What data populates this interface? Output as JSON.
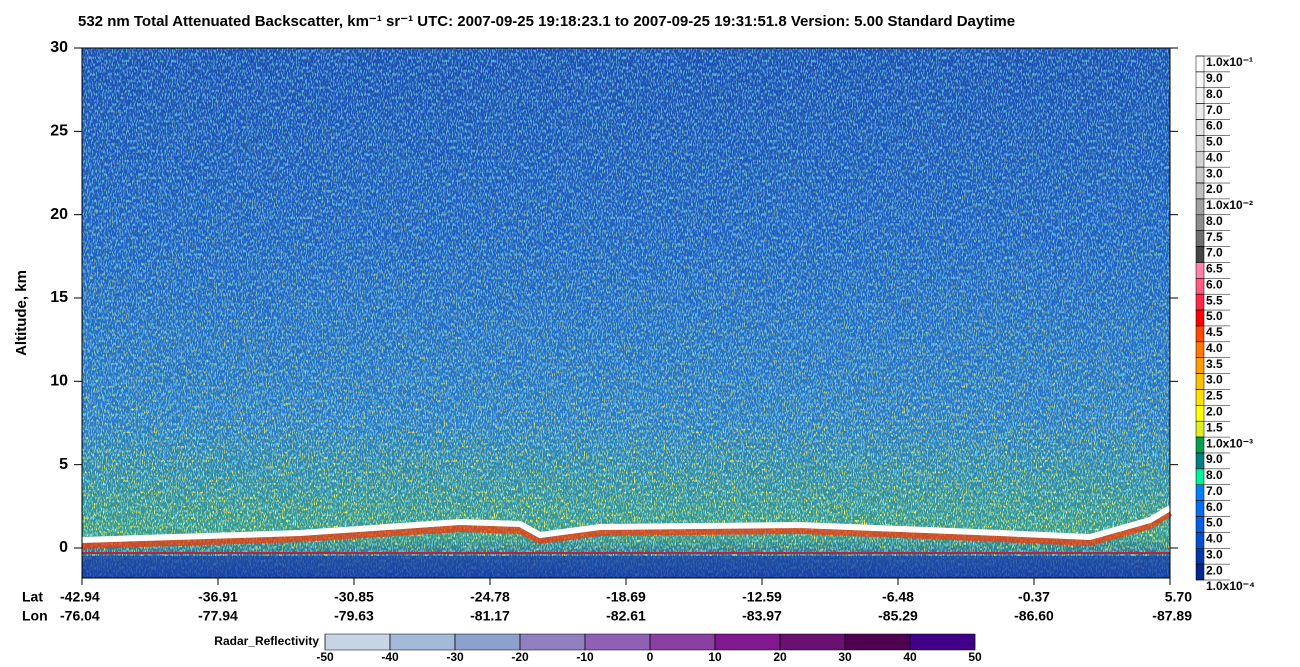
{
  "chart_data": {
    "type": "heatmap",
    "title": "532 nm Total Attenuated Backscatter, km⁻¹ sr⁻¹    UTC:  2007-09-25 19:18:23.1  to  2007-09-25 19:31:51.8    Version: 5.00  Standard  Daytime",
    "ylabel": "Altitude, km",
    "ylim": [
      -1.8,
      30
    ],
    "yticks": [
      0,
      5,
      10,
      15,
      20,
      25,
      30
    ],
    "x_rows": [
      {
        "name": "Lat",
        "labels": [
          "-42.94",
          "-36.91",
          "-30.85",
          "-24.78",
          "-18.69",
          "-12.59",
          "-6.48",
          "-0.37",
          "5.70"
        ]
      },
      {
        "name": "Lon",
        "labels": [
          "-76.04",
          "-77.94",
          "-79.63",
          "-81.17",
          "-82.61",
          "-83.97",
          "-85.29",
          "-86.60",
          "-87.89"
        ]
      }
    ],
    "colorbar": {
      "labels": [
        "1.0x10⁻¹",
        "9.0",
        "8.0",
        "7.0",
        "6.0",
        "5.0",
        "4.0",
        "3.0",
        "2.0",
        "1.0x10⁻²",
        "8.0",
        "7.5",
        "7.0",
        "6.5",
        "6.0",
        "5.5",
        "5.0",
        "4.5",
        "4.0",
        "3.5",
        "3.0",
        "2.5",
        "2.0",
        "1.5",
        "1.0x10⁻³",
        "9.0",
        "8.0",
        "7.0",
        "6.0",
        "5.0",
        "4.0",
        "3.0",
        "2.0",
        "1.0x10⁻⁴"
      ],
      "colors": [
        "#ffffff",
        "#fafafa",
        "#f3f3f3",
        "#ececec",
        "#e4e4e4",
        "#dcdcdc",
        "#d2d2d2",
        "#c8c8c8",
        "#bebebe",
        "#a0a0a0",
        "#8c8c8c",
        "#6e6e6e",
        "#444444",
        "#ff80a8",
        "#ff5a80",
        "#ff2848",
        "#ff0000",
        "#ff4800",
        "#ff7800",
        "#ff9c00",
        "#ffc000",
        "#ffe000",
        "#ffff00",
        "#d8f020",
        "#00a050",
        "#008080",
        "#00f0a0",
        "#0080ff",
        "#0070f0",
        "#0060e0",
        "#0050d0",
        "#0038a8",
        "#002890"
      ]
    },
    "radar_colorbar": {
      "label": "Radar_Reflectivity",
      "ticks": [
        -50,
        -40,
        -30,
        -20,
        -10,
        0,
        10,
        20,
        30,
        40,
        50
      ],
      "colors": [
        "#c6d4e6",
        "#a4bad8",
        "#8ea0cc",
        "#9080c0",
        "#9060b4",
        "#8a40a0",
        "#801890",
        "#6a1070",
        "#500050",
        "#400088"
      ]
    }
  }
}
